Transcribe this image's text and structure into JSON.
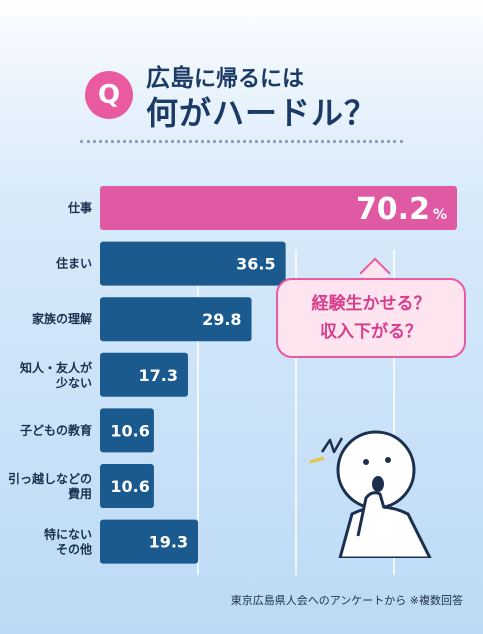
{
  "header": {
    "q_mark": "Q",
    "title_line1_a": "広島",
    "title_line1_b": "に帰るには",
    "title_line2": "何がハードル？"
  },
  "callout": {
    "line1": "経験生かせる？",
    "line2": "収入下がる？"
  },
  "footnote": "東京広島県人会へのアンケートから ※複数回答",
  "chart_data": {
    "type": "bar",
    "orientation": "horizontal",
    "categories": [
      [
        "仕事"
      ],
      [
        "住まい"
      ],
      [
        "家族の理解"
      ],
      [
        "知人・友人が",
        "少ない"
      ],
      [
        "子どもの教育"
      ],
      [
        "引っ越しなどの",
        "費用"
      ],
      [
        "特にない",
        "その他"
      ]
    ],
    "values": [
      70.2,
      36.5,
      29.8,
      17.3,
      10.6,
      10.6,
      19.3
    ],
    "value_labels": [
      "70.2",
      "36.5",
      "29.8",
      "17.3",
      "10.6",
      "10.6",
      "19.3"
    ],
    "unit": "%",
    "xlim": [
      0,
      70.2
    ],
    "highlight_index": 0,
    "colors": {
      "highlight": "#e05aa3",
      "bar": "#1a5a8e",
      "grid": "#ffffff"
    }
  }
}
